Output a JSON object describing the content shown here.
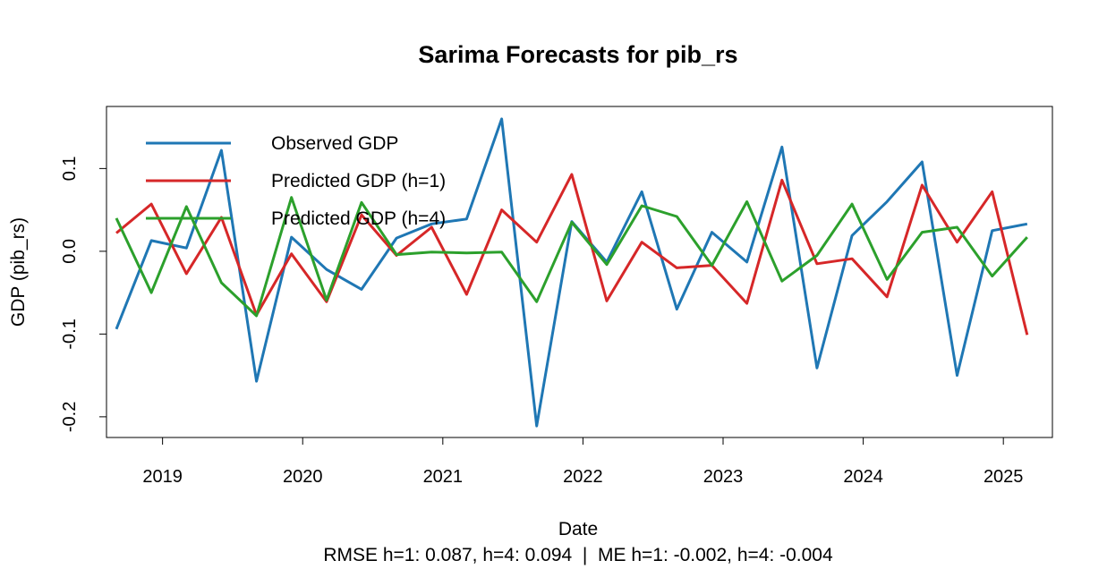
{
  "chart_data": {
    "type": "line",
    "title": "Sarima Forecasts for pib_rs",
    "xlabel": "Date",
    "ylabel": "GDP (pib_rs)",
    "subtitle": "RMSE h=1: 0.087, h=4: 0.094  |  ME h=1: -0.002, h=4: -0.004",
    "x_ticks": [
      "2019",
      "2020",
      "2021",
      "2022",
      "2023",
      "2024",
      "2025"
    ],
    "y_ticks": [
      "-0.2",
      "-0.1",
      "0.0",
      "0.1"
    ],
    "xlim": [
      2018.6,
      2025.35
    ],
    "ylim": [
      -0.225,
      0.175
    ],
    "x_tick_values": [
      2019,
      2020,
      2021,
      2022,
      2023,
      2024,
      2025
    ],
    "y_tick_values": [
      -0.2,
      -0.1,
      0.0,
      0.1
    ],
    "x": [
      2018.67,
      2018.92,
      2019.17,
      2019.42,
      2019.67,
      2019.92,
      2020.17,
      2020.42,
      2020.67,
      2020.92,
      2021.17,
      2021.42,
      2021.67,
      2021.92,
      2022.17,
      2022.42,
      2022.67,
      2022.92,
      2023.17,
      2023.42,
      2023.67,
      2023.92,
      2024.17,
      2024.42,
      2024.67,
      2024.92,
      2025.17
    ],
    "series": [
      {
        "name": "Observed GDP",
        "color": "#1f77b4",
        "values": [
          -0.094,
          0.013,
          0.004,
          0.122,
          -0.157,
          0.017,
          -0.022,
          -0.046,
          0.016,
          0.033,
          0.039,
          0.16,
          -0.211,
          0.036,
          -0.013,
          0.072,
          -0.07,
          0.023,
          -0.013,
          0.126,
          -0.141,
          0.019,
          0.06,
          0.108,
          -0.15,
          0.025,
          0.033
        ]
      },
      {
        "name": "Predicted GDP (h=1)",
        "color": "#d62728",
        "values": [
          0.022,
          0.057,
          -0.027,
          0.041,
          -0.077,
          -0.003,
          -0.061,
          0.044,
          -0.005,
          0.029,
          -0.052,
          0.05,
          0.011,
          0.093,
          -0.06,
          0.011,
          -0.02,
          -0.017,
          -0.063,
          0.086,
          -0.015,
          -0.009,
          -0.055,
          0.08,
          0.011,
          0.072,
          -0.101
        ]
      },
      {
        "name": "Predicted GDP (h=4)",
        "color": "#2ca02c",
        "values": [
          0.04,
          -0.05,
          0.054,
          -0.038,
          -0.078,
          0.065,
          -0.059,
          0.059,
          -0.004,
          -0.001,
          -0.002,
          -0.001,
          -0.061,
          0.035,
          -0.016,
          0.055,
          0.042,
          -0.017,
          0.06,
          -0.036,
          -0.005,
          0.057,
          -0.034,
          0.023,
          0.029,
          -0.03,
          0.017
        ]
      }
    ],
    "legend": "top-left",
    "grid": false
  }
}
